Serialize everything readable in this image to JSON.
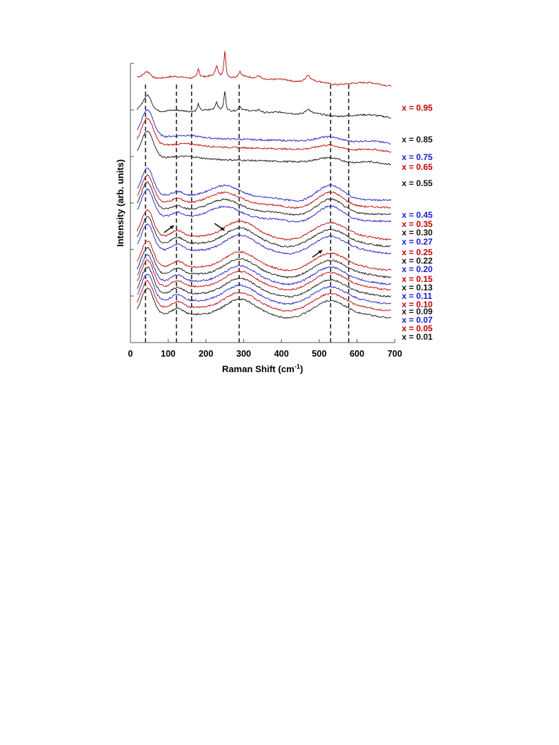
{
  "chart_data": {
    "type": "line",
    "title": "",
    "xlabel": "Raman Shift (cm",
    "xlabel_superscript": "-1",
    "xlabel_close": ")",
    "ylabel": "Intensity (arb. units)",
    "xlim": [
      0,
      700
    ],
    "x_ticks": [
      "0",
      "100",
      "200",
      "300",
      "400",
      "500",
      "600",
      "700"
    ],
    "reference_lines_x": [
      40,
      122,
      162,
      288,
      530,
      578
    ],
    "arrow_annotations": [
      {
        "x": 102,
        "direction": "up-right"
      },
      {
        "x": 236,
        "direction": "down-right"
      },
      {
        "x": 495,
        "direction": "up-right"
      }
    ],
    "series": [
      {
        "name": "x = 0.95",
        "color": "#c00000",
        "offset": 0.95,
        "variant": "crystal_a"
      },
      {
        "name": "x = 0.85",
        "color": "#111111",
        "offset": 0.83,
        "variant": "crystal_b"
      },
      {
        "name": "x = 0.75",
        "color": "#1a1acc",
        "offset": 0.74,
        "variant": "broad_high"
      },
      {
        "name": "x = 0.65",
        "color": "#c00000",
        "offset": 0.71,
        "variant": "broad_high"
      },
      {
        "name": "x = 0.55",
        "color": "#111111",
        "offset": 0.665,
        "variant": "broad_high"
      },
      {
        "name": "x = 0.45",
        "color": "#1a1acc",
        "offset": 0.53,
        "variant": "broad_mid"
      },
      {
        "name": "x = 0.35",
        "color": "#c00000",
        "offset": 0.505,
        "variant": "broad_mid"
      },
      {
        "name": "x = 0.30",
        "color": "#111111",
        "offset": 0.48,
        "variant": "broad_mid"
      },
      {
        "name": "x = 0.27",
        "color": "#1a1acc",
        "offset": 0.455,
        "variant": "broad_mid"
      },
      {
        "name": "x = 0.25",
        "color": "#c00000",
        "offset": 0.38,
        "variant": "broad_low"
      },
      {
        "name": "x = 0.22",
        "color": "#111111",
        "offset": 0.355,
        "variant": "broad_low"
      },
      {
        "name": "x = 0.20",
        "color": "#1a1acc",
        "offset": 0.33,
        "variant": "broad_low"
      },
      {
        "name": "x = 0.15",
        "color": "#c00000",
        "offset": 0.27,
        "variant": "broad_low"
      },
      {
        "name": "x = 0.13",
        "color": "#111111",
        "offset": 0.245,
        "variant": "broad_low"
      },
      {
        "name": "x = 0.11",
        "color": "#1a1acc",
        "offset": 0.22,
        "variant": "broad_low"
      },
      {
        "name": "x = 0.10",
        "color": "#c00000",
        "offset": 0.2,
        "variant": "broad_low"
      },
      {
        "name": "x = 0.09",
        "color": "#111111",
        "offset": 0.175,
        "variant": "broad_low"
      },
      {
        "name": "x = 0.07",
        "color": "#1a1acc",
        "offset": 0.15,
        "variant": "broad_low"
      },
      {
        "name": "x = 0.05",
        "color": "#c00000",
        "offset": 0.125,
        "variant": "broad_low"
      },
      {
        "name": "x = 0.01",
        "color": "#111111",
        "offset": 0.1,
        "variant": "broad_low"
      }
    ]
  }
}
